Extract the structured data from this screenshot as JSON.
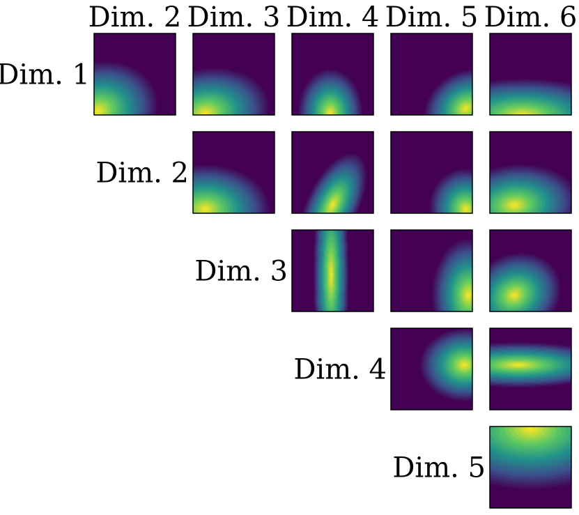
{
  "chart_data": {
    "type": "heatmap",
    "layout": "upper-triangular pairwise grid",
    "colormap": "viridis",
    "colormap_stops": [
      "#440154",
      "#3b528b",
      "#21918c",
      "#5ec962",
      "#fde725"
    ],
    "column_labels": [
      "Dim. 2",
      "Dim. 3",
      "Dim. 4",
      "Dim. 5",
      "Dim. 6"
    ],
    "row_labels": [
      "Dim. 1",
      "Dim. 2",
      "Dim. 3",
      "Dim. 4",
      "Dim. 5"
    ],
    "grid": false,
    "axes_ticks": false,
    "panels": [
      {
        "name": "panel-dim1-dim2",
        "row": 0,
        "col": 0,
        "peak": [
          0.05,
          0.05
        ],
        "spread": [
          0.75,
          0.6
        ],
        "rot": 0.3
      },
      {
        "name": "panel-dim1-dim3",
        "row": 0,
        "col": 1,
        "peak": [
          0.15,
          0.02
        ],
        "spread": [
          0.8,
          0.55
        ],
        "rot": 0.2
      },
      {
        "name": "panel-dim1-dim4",
        "row": 0,
        "col": 2,
        "peak": [
          0.47,
          0.02
        ],
        "spread": [
          0.4,
          0.55
        ],
        "rot": 0.0
      },
      {
        "name": "panel-dim1-dim5",
        "row": 0,
        "col": 3,
        "peak": [
          0.92,
          0.08
        ],
        "spread": [
          0.55,
          0.45
        ],
        "rot": 0.6
      },
      {
        "name": "panel-dim1-dim6",
        "row": 0,
        "col": 4,
        "peak": [
          0.4,
          0.0
        ],
        "spread": [
          1.2,
          0.45
        ],
        "rot": 0.0
      },
      {
        "name": "panel-dim2-dim3",
        "row": 1,
        "col": 1,
        "peak": [
          0.15,
          0.05
        ],
        "spread": [
          0.8,
          0.55
        ],
        "rot": 0.0
      },
      {
        "name": "panel-dim2-dim4",
        "row": 1,
        "col": 2,
        "peak": [
          0.5,
          0.1
        ],
        "spread": [
          0.32,
          0.7
        ],
        "rot": -0.45
      },
      {
        "name": "panel-dim2-dim5",
        "row": 1,
        "col": 3,
        "peak": [
          0.92,
          0.05
        ],
        "spread": [
          0.45,
          0.5
        ],
        "rot": 0.2
      },
      {
        "name": "panel-dim2-dim6",
        "row": 1,
        "col": 4,
        "peak": [
          0.3,
          0.1
        ],
        "spread": [
          0.8,
          0.5
        ],
        "rot": 0.1
      },
      {
        "name": "panel-dim3-dim4",
        "row": 2,
        "col": 2,
        "peak": [
          0.48,
          0.45
        ],
        "spread": [
          0.22,
          1.4
        ],
        "rot": 0.0
      },
      {
        "name": "panel-dim3-dim5",
        "row": 2,
        "col": 3,
        "peak": [
          0.95,
          0.2
        ],
        "spread": [
          0.45,
          0.7
        ],
        "rot": 0.0
      },
      {
        "name": "panel-dim3-dim6",
        "row": 2,
        "col": 4,
        "peak": [
          0.3,
          0.2
        ],
        "spread": [
          0.6,
          0.5
        ],
        "rot": 0.5
      },
      {
        "name": "panel-dim4-dim5",
        "row": 3,
        "col": 3,
        "peak": [
          0.9,
          0.55
        ],
        "spread": [
          0.55,
          0.45
        ],
        "rot": 0.0
      },
      {
        "name": "panel-dim4-dim6",
        "row": 3,
        "col": 4,
        "peak": [
          0.35,
          0.55
        ],
        "spread": [
          1.2,
          0.28
        ],
        "rot": 0.0
      },
      {
        "name": "panel-dim5-dim6",
        "row": 4,
        "col": 4,
        "peak": [
          0.5,
          0.97
        ],
        "spread": [
          1.3,
          0.75
        ],
        "rot": 0.0
      }
    ]
  }
}
